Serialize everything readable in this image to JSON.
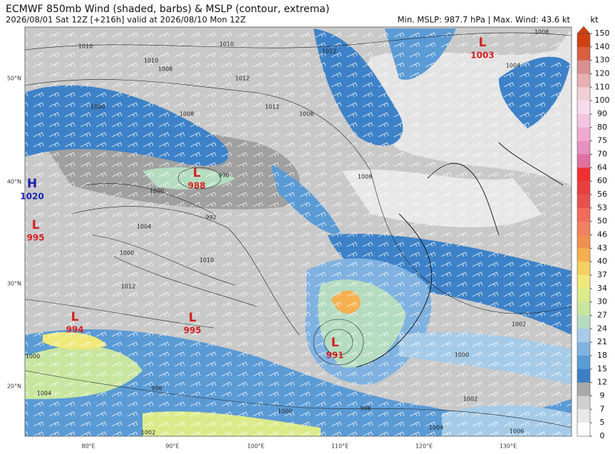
{
  "header": {
    "title": "ECMWF 850mb Wind (shaded, barbs) & MSLP (contour, extrema)",
    "subtitle": "2026/08/01 Sat 12Z [+216h] valid at 2026/08/10 Mon 12Z",
    "stats": "Min. MSLP: 987.7 hPa | Max. Wind: 43.6 kt"
  },
  "colorbar": {
    "unit": "kt",
    "levels": [
      150,
      140,
      130,
      120,
      110,
      100,
      90,
      80,
      75,
      70,
      64,
      60,
      56,
      53,
      50,
      46,
      43,
      40,
      37,
      34,
      30,
      27,
      24,
      21,
      18,
      15,
      12,
      9,
      7,
      5,
      0
    ],
    "colors": [
      "#d04010",
      "#d86040",
      "#d89090",
      "#e8b0b0",
      "#f0d0d8",
      "#f8dcec",
      "#f4c4e0",
      "#f0a8d0",
      "#e890c0",
      "#e070a0",
      "#f03030",
      "#e84040",
      "#e85050",
      "#f06a5a",
      "#f08060",
      "#f09050",
      "#f5b050",
      "#f5d060",
      "#f0e87a",
      "#dbeb8a",
      "#c8e6a0",
      "#b5dcc0",
      "#a6cbe8",
      "#7fb2e0",
      "#5b9bd5",
      "#3b7fc4",
      "#a8a8a8",
      "#d0d0d0",
      "#e8e8e8",
      "#ffffff"
    ]
  },
  "axes": {
    "lat": [
      "50°N",
      "40°N",
      "30°N",
      "20°N"
    ],
    "lon": [
      "80°E",
      "90°E",
      "100°E",
      "110°E",
      "120°E",
      "130°E"
    ]
  },
  "centers": [
    {
      "type": "L",
      "value": "1003"
    },
    {
      "type": "L",
      "value": "988"
    },
    {
      "type": "H",
      "value": "1020"
    },
    {
      "type": "L",
      "value": "995"
    },
    {
      "type": "L",
      "value": "994"
    },
    {
      "type": "L",
      "value": "995"
    },
    {
      "type": "L",
      "value": "991"
    }
  ],
  "contour_labels": [
    "1010",
    "1010",
    "1012",
    "1008",
    "1004",
    "1010",
    "1008",
    "1012",
    "1006",
    "1008",
    "1012",
    "1008",
    "1000",
    "996",
    "992",
    "1004",
    "1000",
    "1010",
    "1012",
    "1008",
    "1000",
    "1002",
    "1006",
    "1002",
    "1004",
    "1000",
    "998",
    "1000",
    "998",
    "1004",
    "1002"
  ]
}
